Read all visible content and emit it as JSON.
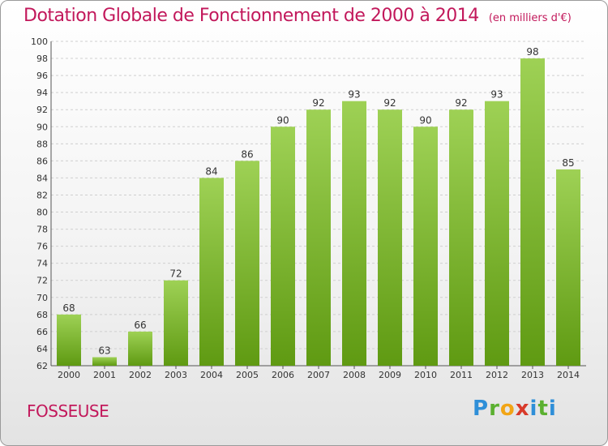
{
  "title": "Dotation Globale de Fonctionnement de 2000 à 2014",
  "subtitle": "(en milliers d'€)",
  "town": "FOSSEUSE",
  "logo": {
    "letters": [
      "P",
      "r",
      "o",
      "x",
      "i",
      "t",
      "i"
    ]
  },
  "colors": {
    "title": "#c2185b",
    "bar_top": "#9ed155",
    "bar_bottom": "#5f9a12",
    "grid": "#cfcfcf"
  },
  "chart_data": {
    "type": "bar",
    "title": "Dotation Globale de Fonctionnement de 2000 à 2014",
    "subtitle": "(en milliers d'€)",
    "xlabel": "",
    "ylabel": "",
    "categories": [
      "2000",
      "2001",
      "2002",
      "2003",
      "2004",
      "2005",
      "2006",
      "2007",
      "2008",
      "2009",
      "2010",
      "2011",
      "2012",
      "2013",
      "2014"
    ],
    "values": [
      68,
      63,
      66,
      72,
      84,
      86,
      90,
      92,
      93,
      92,
      90,
      92,
      93,
      98,
      85
    ],
    "ylim": [
      62,
      100
    ],
    "ytick_step": 2,
    "grid": true,
    "legend": "none",
    "data_labels": true
  }
}
